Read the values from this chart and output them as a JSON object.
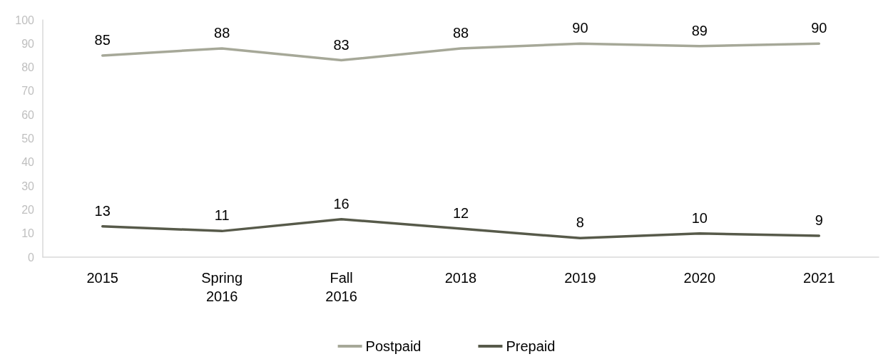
{
  "chart_data": {
    "type": "line",
    "categories": [
      "2015",
      "Spring 2016",
      "Fall 2016",
      "2018",
      "2019",
      "2020",
      "2021"
    ],
    "series": [
      {
        "name": "Postpaid",
        "color": "#a6a898",
        "values": [
          85,
          88,
          83,
          88,
          90,
          89,
          90
        ]
      },
      {
        "name": "Prepaid",
        "color": "#575a4a",
        "values": [
          13,
          11,
          16,
          12,
          8,
          10,
          9
        ]
      }
    ],
    "ylim": [
      0,
      100
    ],
    "yticks": [
      0,
      10,
      20,
      30,
      40,
      50,
      60,
      70,
      80,
      90,
      100
    ],
    "grid": false,
    "legend": "bottom",
    "marker": "none",
    "line_style": "solid",
    "data_labels": true
  }
}
